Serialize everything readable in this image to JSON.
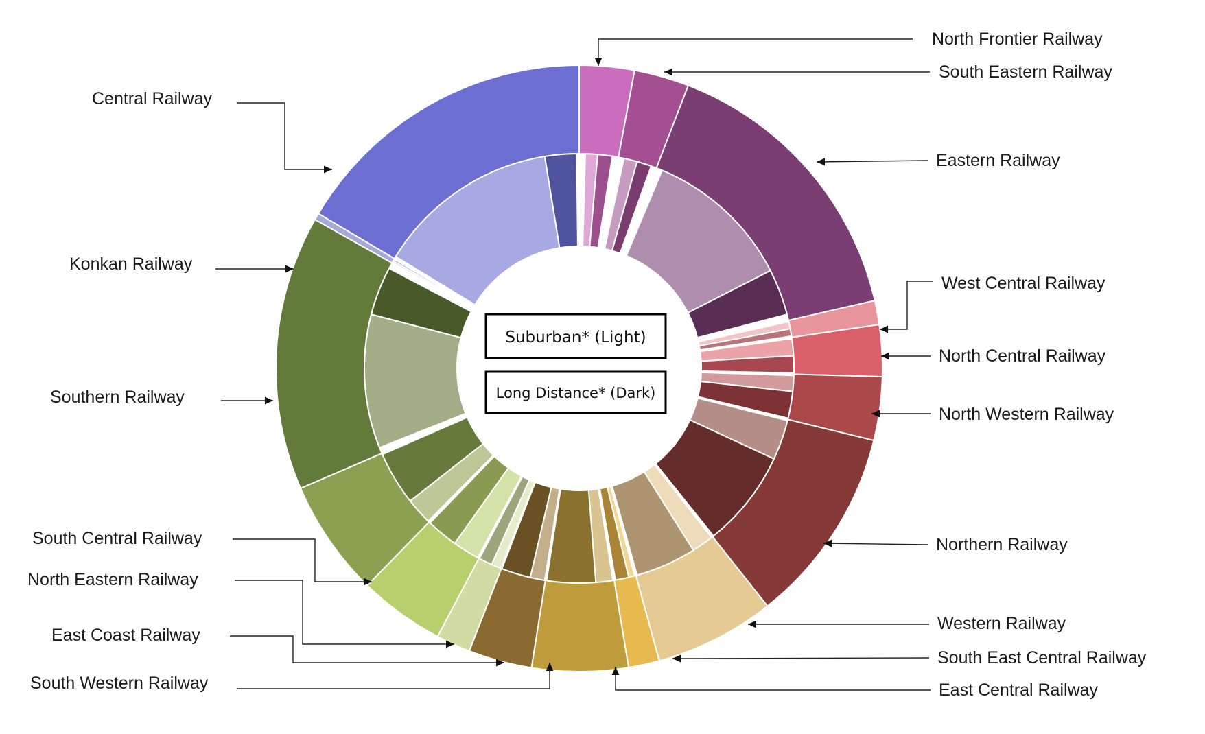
{
  "chart_data": {
    "type": "sunburst",
    "title": "",
    "legend": [
      {
        "label": "Suburban* (Light)",
        "font_px": 23
      },
      {
        "label": "Long Distance* (Dark)",
        "font_px": 21
      }
    ],
    "categories": [
      {
        "name": "North Frontier  Railway",
        "value": 3.2,
        "color": "#CB6DBD",
        "inner": [
          {
            "type": "suburban",
            "value": 1.0,
            "color": "#DFA8D7"
          },
          {
            "type": "long_distance",
            "value": 1.2,
            "color": "#9B4F8F"
          }
        ]
      },
      {
        "name": "South Eastern Railway",
        "value": 3.2,
        "color": "#A34F92",
        "inner": [
          {
            "type": "suburban",
            "value": 1.1,
            "color": "#C79ABF"
          },
          {
            "type": "long_distance",
            "value": 1.2,
            "color": "#7A3B6E"
          }
        ]
      },
      {
        "name": "Eastern Railway",
        "value": 17.0,
        "color": "#7B3E73",
        "inner": [
          {
            "type": "suburban",
            "value": 12.2,
            "color": "#AF8DAD"
          },
          {
            "type": "long_distance",
            "value": 3.8,
            "color": "#5A2E54"
          }
        ]
      },
      {
        "name": "West Central Railway",
        "value": 1.4,
        "color": "#E8959B",
        "inner": [
          {
            "type": "suburban",
            "value": 0.6,
            "color": "#F2C4C6"
          },
          {
            "type": "long_distance",
            "value": 0.6,
            "color": "#B87579"
          }
        ]
      },
      {
        "name": "North Central  Railway",
        "value": 3.0,
        "color": "#D9606A",
        "inner": [
          {
            "type": "suburban",
            "value": 1.4,
            "color": "#ECA3A8"
          },
          {
            "type": "long_distance",
            "value": 1.4,
            "color": "#A8474F"
          }
        ]
      },
      {
        "name": "North Western Railway",
        "value": 3.7,
        "color": "#AA484A",
        "inner": [
          {
            "type": "suburban",
            "value": 1.3,
            "color": "#D29A9B"
          },
          {
            "type": "long_distance",
            "value": 2.2,
            "color": "#7C3235"
          }
        ]
      },
      {
        "name": "Northern Railway",
        "value": 11.5,
        "color": "#853A38",
        "inner": [
          {
            "type": "suburban",
            "value": 3.3,
            "color": "#B68E89"
          },
          {
            "type": "long_distance",
            "value": 8.0,
            "color": "#642C2B"
          }
        ]
      },
      {
        "name": "Western Railway",
        "value": 7.0,
        "color": "#E6CA94",
        "inner": [
          {
            "type": "suburban",
            "value": 1.8,
            "color": "#EDDBB9"
          },
          {
            "type": "long_distance",
            "value": 5.0,
            "color": "#AE9571"
          }
        ]
      },
      {
        "name": "South East Central  Railway",
        "value": 1.8,
        "color": "#E7BA4F",
        "inner": [
          {
            "type": "suburban",
            "value": 0.5,
            "color": "#F1D694"
          },
          {
            "type": "long_distance",
            "value": 1.1,
            "color": "#A98436"
          }
        ]
      },
      {
        "name": "East Central Railway",
        "value": 5.6,
        "color": "#BF9C3B",
        "inner": [
          {
            "type": "suburban",
            "value": 1.4,
            "color": "#D9C38F"
          },
          {
            "type": "long_distance",
            "value": 4.0,
            "color": "#8A712D"
          }
        ]
      },
      {
        "name": "South Western Railway",
        "value": 3.7,
        "color": "#8A6A31",
        "inner": [
          {
            "type": "suburban",
            "value": 1.2,
            "color": "#C2AE8A"
          },
          {
            "type": "long_distance",
            "value": 2.4,
            "color": "#6A5124"
          }
        ]
      },
      {
        "name": "East Coast Railway",
        "value": 2.0,
        "color": "#D2DBA1",
        "inner": [
          {
            "type": "suburban",
            "value": 0.8,
            "color": "#E6ECC9"
          },
          {
            "type": "long_distance",
            "value": 1.1,
            "color": "#9DA57A"
          }
        ]
      },
      {
        "name": "North Eastern  Railway",
        "value": 5.0,
        "color": "#B7D06D",
        "inner": [
          {
            "type": "suburban",
            "value": 2.2,
            "color": "#D3E2A7"
          },
          {
            "type": "long_distance",
            "value": 2.6,
            "color": "#899B51"
          }
        ]
      },
      {
        "name": "South Central Railway",
        "value": 6.8,
        "color": "#8BA050",
        "inner": [
          {
            "type": "suburban",
            "value": 2.2,
            "color": "#BDC797"
          },
          {
            "type": "long_distance",
            "value": 4.4,
            "color": "#657A3B"
          }
        ]
      },
      {
        "name": "Southern  Railway",
        "value": 16.0,
        "color": "#627A3A",
        "inner": [
          {
            "type": "suburban",
            "value": 11.0,
            "color": "#A3AE88"
          },
          {
            "type": "long_distance",
            "value": 4.0,
            "color": "#48592A"
          }
        ]
      },
      {
        "name": "Konkan Railway",
        "value": 0.4,
        "color": "#A6A9D4",
        "inner": [
          {
            "type": "suburban",
            "value": 0.15,
            "color": "#C9CBE6"
          },
          {
            "type": "long_distance",
            "value": 0.15,
            "color": "#7F82B5"
          }
        ]
      },
      {
        "name": "Central Railway",
        "value": 18.0,
        "color": "#6C6FD1",
        "inner": [
          {
            "type": "suburban",
            "value": 15.0,
            "color": "#A6A9E2"
          },
          {
            "type": "long_distance",
            "value": 2.6,
            "color": "#4F529C"
          }
        ]
      }
    ]
  }
}
